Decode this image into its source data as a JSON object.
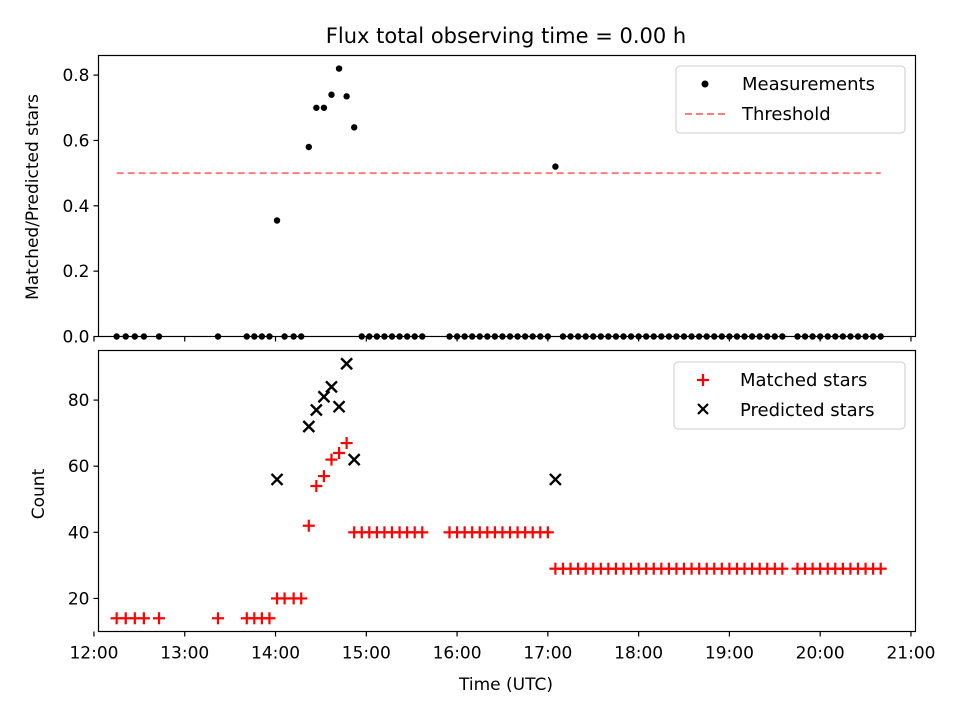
{
  "chart_data": [
    {
      "type": "scatter",
      "title": "Flux total observing time = 0.00 h",
      "xlabel": "",
      "ylabel": "Matched/Predicted stars",
      "xlim": [
        "12:03",
        "21:03"
      ],
      "ylim": [
        0,
        0.86
      ],
      "yticks": [
        0.0,
        0.2,
        0.4,
        0.6,
        0.8
      ],
      "ytick_labels": [
        "0.0",
        "0.2",
        "0.4",
        "0.6",
        "0.8"
      ],
      "legend_position": "top-right",
      "series": [
        {
          "name": "Measurements",
          "marker": "dot",
          "color": "#000000",
          "points": [
            [
              "12:15",
              0.0
            ],
            [
              "12:21",
              0.0
            ],
            [
              "12:27",
              0.0
            ],
            [
              "12:33",
              0.0
            ],
            [
              "12:43",
              0.0
            ],
            [
              "13:22",
              0.0
            ],
            [
              "13:41",
              0.0
            ],
            [
              "13:46",
              0.0
            ],
            [
              "13:51",
              0.0
            ],
            [
              "13:56",
              0.0
            ],
            [
              "14:01",
              0.355
            ],
            [
              "14:06",
              0.0
            ],
            [
              "14:12",
              0.0
            ],
            [
              "14:17",
              0.0
            ],
            [
              "14:22",
              0.58
            ],
            [
              "14:27",
              0.7
            ],
            [
              "14:32",
              0.7
            ],
            [
              "14:37",
              0.74
            ],
            [
              "14:42",
              0.82
            ],
            [
              "14:47",
              0.735
            ],
            [
              "14:52",
              0.64
            ],
            [
              "14:57",
              0.0
            ],
            [
              "15:02",
              0.0
            ],
            [
              "15:07",
              0.0
            ],
            [
              "15:12",
              0.0
            ],
            [
              "15:17",
              0.0
            ],
            [
              "15:22",
              0.0
            ],
            [
              "15:27",
              0.0
            ],
            [
              "15:32",
              0.0
            ],
            [
              "15:37",
              0.0
            ],
            [
              "15:55",
              0.0
            ],
            [
              "16:00",
              0.0
            ],
            [
              "16:05",
              0.0
            ],
            [
              "16:10",
              0.0
            ],
            [
              "16:15",
              0.0
            ],
            [
              "16:20",
              0.0
            ],
            [
              "16:25",
              0.0
            ],
            [
              "16:30",
              0.0
            ],
            [
              "16:35",
              0.0
            ],
            [
              "16:40",
              0.0
            ],
            [
              "16:45",
              0.0
            ],
            [
              "16:50",
              0.0
            ],
            [
              "16:55",
              0.0
            ],
            [
              "17:00",
              0.0
            ],
            [
              "17:05",
              0.52
            ],
            [
              "17:10",
              0.0
            ],
            [
              "17:15",
              0.0
            ],
            [
              "17:20",
              0.0
            ],
            [
              "17:25",
              0.0
            ],
            [
              "17:30",
              0.0
            ],
            [
              "17:35",
              0.0
            ],
            [
              "17:40",
              0.0
            ],
            [
              "17:45",
              0.0
            ],
            [
              "17:50",
              0.0
            ],
            [
              "17:55",
              0.0
            ],
            [
              "18:00",
              0.0
            ],
            [
              "18:05",
              0.0
            ],
            [
              "18:10",
              0.0
            ],
            [
              "18:15",
              0.0
            ],
            [
              "18:20",
              0.0
            ],
            [
              "18:25",
              0.0
            ],
            [
              "18:30",
              0.0
            ],
            [
              "18:35",
              0.0
            ],
            [
              "18:40",
              0.0
            ],
            [
              "18:45",
              0.0
            ],
            [
              "18:50",
              0.0
            ],
            [
              "18:55",
              0.0
            ],
            [
              "19:00",
              0.0
            ],
            [
              "19:05",
              0.0
            ],
            [
              "19:10",
              0.0
            ],
            [
              "19:15",
              0.0
            ],
            [
              "19:20",
              0.0
            ],
            [
              "19:25",
              0.0
            ],
            [
              "19:30",
              0.0
            ],
            [
              "19:35",
              0.0
            ],
            [
              "19:45",
              0.0
            ],
            [
              "19:50",
              0.0
            ],
            [
              "19:55",
              0.0
            ],
            [
              "20:00",
              0.0
            ],
            [
              "20:05",
              0.0
            ],
            [
              "20:10",
              0.0
            ],
            [
              "20:15",
              0.0
            ],
            [
              "20:20",
              0.0
            ],
            [
              "20:25",
              0.0
            ],
            [
              "20:30",
              0.0
            ],
            [
              "20:35",
              0.0
            ],
            [
              "20:40",
              0.0
            ]
          ]
        },
        {
          "name": "Threshold",
          "type": "line",
          "style": "dashed",
          "color": "#ff7f7f",
          "points": [
            [
              "12:15",
              0.5
            ],
            [
              "20:40",
              0.5
            ]
          ]
        }
      ]
    },
    {
      "type": "scatter",
      "title": "",
      "xlabel": "Time (UTC)",
      "ylabel": "Count",
      "xlim": [
        "12:03",
        "21:03"
      ],
      "ylim": [
        10,
        95
      ],
      "yticks": [
        20,
        40,
        60,
        80
      ],
      "ytick_labels": [
        "20",
        "40",
        "60",
        "80"
      ],
      "xticks": [
        "12:00",
        "13:00",
        "14:00",
        "15:00",
        "16:00",
        "17:00",
        "18:00",
        "19:00",
        "20:00",
        "21:00"
      ],
      "legend_position": "top-right",
      "series": [
        {
          "name": "Matched stars",
          "marker": "plus",
          "color": "#ff0000",
          "points": [
            [
              "12:15",
              14
            ],
            [
              "12:21",
              14
            ],
            [
              "12:27",
              14
            ],
            [
              "12:33",
              14
            ],
            [
              "12:43",
              14
            ],
            [
              "13:22",
              14
            ],
            [
              "13:41",
              14
            ],
            [
              "13:46",
              14
            ],
            [
              "13:51",
              14
            ],
            [
              "13:56",
              14
            ],
            [
              "14:01",
              20
            ],
            [
              "14:06",
              20
            ],
            [
              "14:12",
              20
            ],
            [
              "14:17",
              20
            ],
            [
              "14:22",
              42
            ],
            [
              "14:27",
              54
            ],
            [
              "14:32",
              57
            ],
            [
              "14:37",
              62
            ],
            [
              "14:42",
              64
            ],
            [
              "14:47",
              67
            ],
            [
              "14:52",
              40
            ],
            [
              "14:57",
              40
            ],
            [
              "15:02",
              40
            ],
            [
              "15:07",
              40
            ],
            [
              "15:12",
              40
            ],
            [
              "15:17",
              40
            ],
            [
              "15:22",
              40
            ],
            [
              "15:27",
              40
            ],
            [
              "15:32",
              40
            ],
            [
              "15:37",
              40
            ],
            [
              "15:55",
              40
            ],
            [
              "16:00",
              40
            ],
            [
              "16:05",
              40
            ],
            [
              "16:10",
              40
            ],
            [
              "16:15",
              40
            ],
            [
              "16:20",
              40
            ],
            [
              "16:25",
              40
            ],
            [
              "16:30",
              40
            ],
            [
              "16:35",
              40
            ],
            [
              "16:40",
              40
            ],
            [
              "16:45",
              40
            ],
            [
              "16:50",
              40
            ],
            [
              "16:55",
              40
            ],
            [
              "17:00",
              40
            ],
            [
              "17:05",
              29
            ],
            [
              "17:10",
              29
            ],
            [
              "17:15",
              29
            ],
            [
              "17:20",
              29
            ],
            [
              "17:25",
              29
            ],
            [
              "17:30",
              29
            ],
            [
              "17:35",
              29
            ],
            [
              "17:40",
              29
            ],
            [
              "17:45",
              29
            ],
            [
              "17:50",
              29
            ],
            [
              "17:55",
              29
            ],
            [
              "18:00",
              29
            ],
            [
              "18:05",
              29
            ],
            [
              "18:10",
              29
            ],
            [
              "18:15",
              29
            ],
            [
              "18:20",
              29
            ],
            [
              "18:25",
              29
            ],
            [
              "18:30",
              29
            ],
            [
              "18:35",
              29
            ],
            [
              "18:40",
              29
            ],
            [
              "18:45",
              29
            ],
            [
              "18:50",
              29
            ],
            [
              "18:55",
              29
            ],
            [
              "19:00",
              29
            ],
            [
              "19:05",
              29
            ],
            [
              "19:10",
              29
            ],
            [
              "19:15",
              29
            ],
            [
              "19:20",
              29
            ],
            [
              "19:25",
              29
            ],
            [
              "19:30",
              29
            ],
            [
              "19:35",
              29
            ],
            [
              "19:45",
              29
            ],
            [
              "19:50",
              29
            ],
            [
              "19:55",
              29
            ],
            [
              "20:00",
              29
            ],
            [
              "20:05",
              29
            ],
            [
              "20:10",
              29
            ],
            [
              "20:15",
              29
            ],
            [
              "20:20",
              29
            ],
            [
              "20:25",
              29
            ],
            [
              "20:30",
              29
            ],
            [
              "20:35",
              29
            ],
            [
              "20:40",
              29
            ]
          ]
        },
        {
          "name": "Predicted stars",
          "marker": "x",
          "color": "#000000",
          "points": [
            [
              "14:01",
              56
            ],
            [
              "14:22",
              72
            ],
            [
              "14:27",
              77
            ],
            [
              "14:32",
              81
            ],
            [
              "14:37",
              84
            ],
            [
              "14:42",
              78
            ],
            [
              "14:47",
              91
            ],
            [
              "14:52",
              62
            ],
            [
              "17:05",
              56
            ]
          ]
        }
      ]
    }
  ]
}
